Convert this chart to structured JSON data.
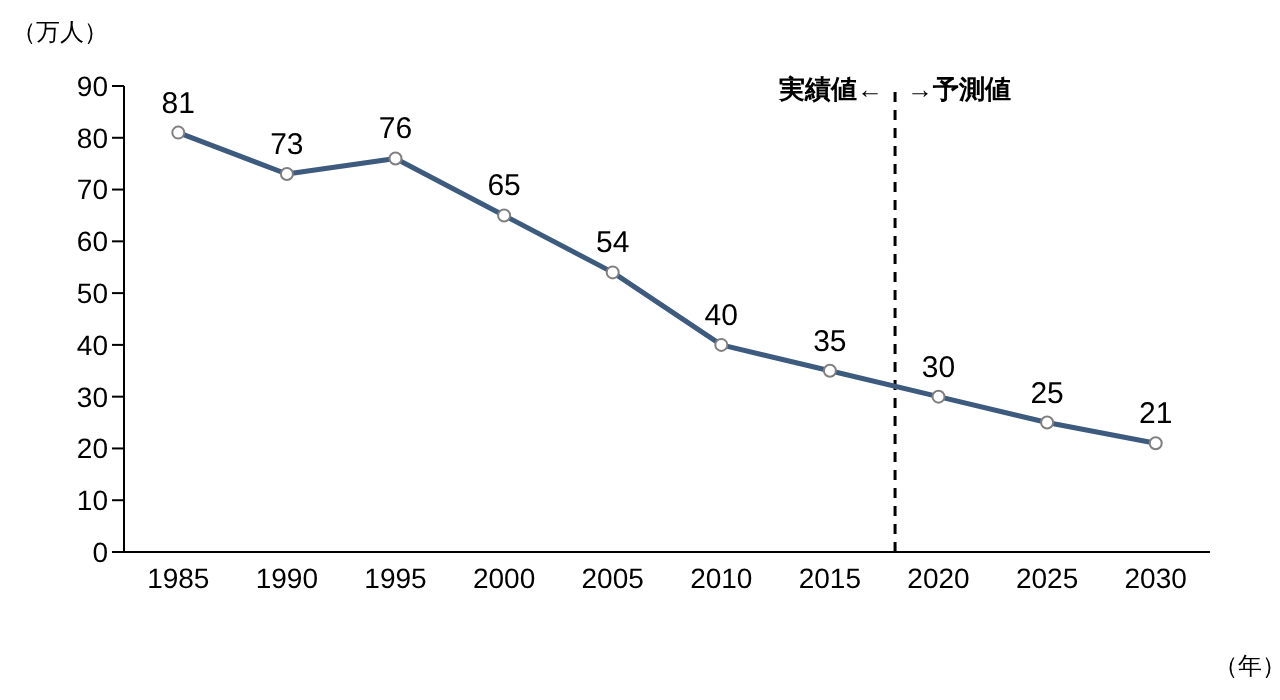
{
  "chart_data": {
    "type": "line",
    "ylabel": "（万人）",
    "xlabel": "（年）",
    "x": [
      1985,
      1990,
      1995,
      2000,
      2005,
      2010,
      2015,
      2020,
      2025,
      2030
    ],
    "series": [
      {
        "color": "#3d5a7f",
        "values": [
          81,
          73,
          76,
          65,
          54,
          40,
          35,
          30,
          25,
          21
        ]
      }
    ],
    "xlim": [
      1982.5,
      2032.5
    ],
    "xticks": [
      1985,
      1990,
      1995,
      2000,
      2005,
      2010,
      2015,
      2020,
      2025,
      2030
    ],
    "ylim": [
      0,
      90
    ],
    "yticks": [
      0,
      10,
      20,
      30,
      40,
      50,
      60,
      70,
      80,
      90
    ],
    "ref_lines": [
      {
        "axis": "x",
        "value": 2018,
        "line_style": "dashed",
        "color": "#000000"
      }
    ],
    "annotations": [
      {
        "text": "実績値←",
        "x": 2018,
        "y": 88
      },
      {
        "text": "→予測値",
        "x": 2018,
        "y": 88
      }
    ],
    "data_labels": true,
    "marker": "circle",
    "line_style": "solid",
    "grid": false,
    "legend": false
  }
}
